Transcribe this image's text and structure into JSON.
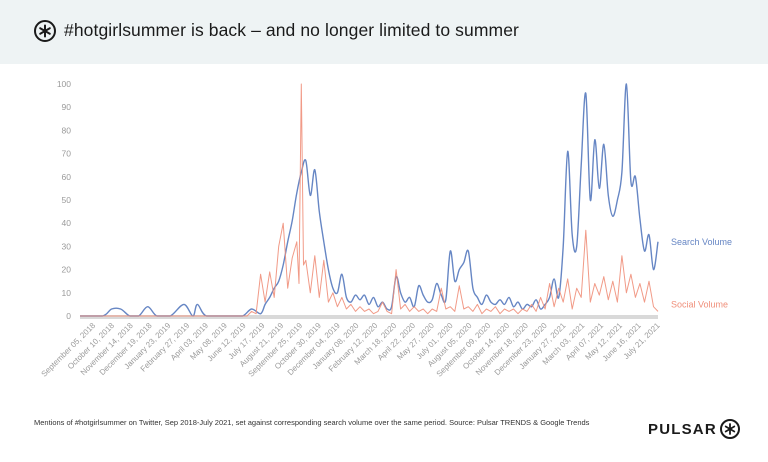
{
  "header": {
    "title": "#hotgirlsummer is back – and no longer limited to summer",
    "logo_icon": "pulsar-asterisk-icon"
  },
  "chart_data": {
    "type": "line",
    "title": "#hotgirlsummer is back – and no longer limited to summer",
    "xlabel": "",
    "ylabel": "",
    "ylim": [
      0,
      100
    ],
    "yticks": [
      0,
      10,
      20,
      30,
      40,
      50,
      60,
      70,
      80,
      90,
      100
    ],
    "grid": false,
    "legend": "inline-right",
    "x_tick_labels": [
      "September 05, 2018",
      "October 10, 2018",
      "November 14, 2018",
      "December 19, 2018",
      "January 23, 2019",
      "February 27, 2019",
      "April 03, 2019",
      "May 08, 2019",
      "June 12, 2019",
      "July 17, 2019",
      "August 21, 2019",
      "September 25, 2019",
      "October 30, 2019",
      "December 04, 2019",
      "January 08, 2020",
      "February 12, 2020",
      "March 18, 2020",
      "April 22, 2020",
      "May 27, 2020",
      "July 01, 2020",
      "August 05, 2020",
      "September 09, 2020",
      "October 14, 2020",
      "November 18, 2020",
      "December 23, 2020",
      "January 27, 2021",
      "March 03, 2021",
      "April 07, 2021",
      "May 12, 2021",
      "June 16, 2021",
      "July 21, 2021"
    ],
    "series": [
      {
        "name": "Search Volume",
        "color": "#6686c4",
        "points": [
          [
            0,
            0
          ],
          [
            5,
            0
          ],
          [
            7,
            3
          ],
          [
            9,
            3
          ],
          [
            11,
            0
          ],
          [
            13,
            0
          ],
          [
            15,
            4
          ],
          [
            17,
            0
          ],
          [
            20,
            0
          ],
          [
            23,
            5
          ],
          [
            25,
            0
          ],
          [
            26,
            5
          ],
          [
            28,
            0
          ],
          [
            33,
            0
          ],
          [
            36,
            0
          ],
          [
            38,
            3
          ],
          [
            40,
            1
          ],
          [
            41,
            5
          ],
          [
            42,
            8
          ],
          [
            43,
            12
          ],
          [
            44,
            15
          ],
          [
            45,
            22
          ],
          [
            46,
            32
          ],
          [
            47,
            41
          ],
          [
            48,
            53
          ],
          [
            49,
            62
          ],
          [
            50,
            67
          ],
          [
            51,
            52
          ],
          [
            52,
            63
          ],
          [
            53,
            45
          ],
          [
            54,
            32
          ],
          [
            55,
            20
          ],
          [
            56,
            12
          ],
          [
            57,
            10
          ],
          [
            58,
            18
          ],
          [
            59,
            8
          ],
          [
            60,
            6
          ],
          [
            61,
            9
          ],
          [
            62,
            7
          ],
          [
            63,
            9
          ],
          [
            64,
            5
          ],
          [
            65,
            8
          ],
          [
            66,
            4
          ],
          [
            67,
            6
          ],
          [
            68,
            3
          ],
          [
            69,
            4
          ],
          [
            70,
            17
          ],
          [
            71,
            10
          ],
          [
            72,
            6
          ],
          [
            73,
            8
          ],
          [
            74,
            4
          ],
          [
            75,
            13
          ],
          [
            76,
            9
          ],
          [
            77,
            6
          ],
          [
            78,
            7
          ],
          [
            79,
            14
          ],
          [
            80,
            9
          ],
          [
            81,
            7
          ],
          [
            82,
            28
          ],
          [
            83,
            15
          ],
          [
            84,
            20
          ],
          [
            85,
            23
          ],
          [
            86,
            28
          ],
          [
            87,
            12
          ],
          [
            88,
            8
          ],
          [
            89,
            5
          ],
          [
            90,
            9
          ],
          [
            91,
            6
          ],
          [
            92,
            5
          ],
          [
            93,
            7
          ],
          [
            94,
            5
          ],
          [
            95,
            8
          ],
          [
            96,
            4
          ],
          [
            97,
            6
          ],
          [
            98,
            3
          ],
          [
            99,
            5
          ],
          [
            100,
            4
          ],
          [
            101,
            7
          ],
          [
            102,
            3
          ],
          [
            103,
            5
          ],
          [
            104,
            8
          ],
          [
            105,
            16
          ],
          [
            106,
            8
          ],
          [
            107,
            30
          ],
          [
            108,
            71
          ],
          [
            109,
            35
          ],
          [
            110,
            30
          ],
          [
            111,
            65
          ],
          [
            112,
            96
          ],
          [
            113,
            50
          ],
          [
            114,
            76
          ],
          [
            115,
            55
          ],
          [
            116,
            74
          ],
          [
            117,
            52
          ],
          [
            118,
            43
          ],
          [
            119,
            50
          ],
          [
            120,
            62
          ],
          [
            121,
            100
          ],
          [
            122,
            58
          ],
          [
            123,
            60
          ],
          [
            124,
            42
          ],
          [
            125,
            28
          ],
          [
            126,
            35
          ],
          [
            127,
            20
          ],
          [
            128,
            32
          ]
        ]
      },
      {
        "name": "Social Volume",
        "color": "#f08f7a",
        "points": [
          [
            0,
            0
          ],
          [
            37,
            0
          ],
          [
            38,
            2
          ],
          [
            39,
            1
          ],
          [
            40,
            18
          ],
          [
            41,
            6
          ],
          [
            42,
            19
          ],
          [
            43,
            8
          ],
          [
            44,
            30
          ],
          [
            45,
            40
          ],
          [
            46,
            12
          ],
          [
            47,
            25
          ],
          [
            48,
            32
          ],
          [
            48.5,
            14
          ],
          [
            49,
            100
          ],
          [
            49.5,
            22
          ],
          [
            50,
            24
          ],
          [
            51,
            10
          ],
          [
            52,
            26
          ],
          [
            53,
            8
          ],
          [
            54,
            24
          ],
          [
            55,
            6
          ],
          [
            56,
            10
          ],
          [
            57,
            4
          ],
          [
            58,
            8
          ],
          [
            59,
            3
          ],
          [
            60,
            5
          ],
          [
            61,
            2
          ],
          [
            62,
            4
          ],
          [
            63,
            2
          ],
          [
            64,
            3
          ],
          [
            65,
            1
          ],
          [
            66,
            2
          ],
          [
            67,
            6
          ],
          [
            68,
            2
          ],
          [
            69,
            1
          ],
          [
            70,
            20
          ],
          [
            71,
            3
          ],
          [
            72,
            5
          ],
          [
            73,
            2
          ],
          [
            74,
            4
          ],
          [
            75,
            2
          ],
          [
            76,
            3
          ],
          [
            77,
            1
          ],
          [
            78,
            3
          ],
          [
            79,
            2
          ],
          [
            80,
            12
          ],
          [
            81,
            3
          ],
          [
            82,
            4
          ],
          [
            83,
            2
          ],
          [
            84,
            13
          ],
          [
            85,
            3
          ],
          [
            86,
            4
          ],
          [
            87,
            2
          ],
          [
            88,
            5
          ],
          [
            89,
            1
          ],
          [
            90,
            3
          ],
          [
            91,
            2
          ],
          [
            92,
            4
          ],
          [
            93,
            1
          ],
          [
            94,
            3
          ],
          [
            95,
            2
          ],
          [
            96,
            3
          ],
          [
            97,
            1
          ],
          [
            98,
            3
          ],
          [
            99,
            2
          ],
          [
            100,
            5
          ],
          [
            101,
            2
          ],
          [
            102,
            8
          ],
          [
            103,
            3
          ],
          [
            104,
            14
          ],
          [
            105,
            4
          ],
          [
            106,
            12
          ],
          [
            107,
            6
          ],
          [
            108,
            16
          ],
          [
            109,
            3
          ],
          [
            110,
            12
          ],
          [
            111,
            8
          ],
          [
            112,
            37
          ],
          [
            113,
            6
          ],
          [
            114,
            14
          ],
          [
            115,
            9
          ],
          [
            116,
            17
          ],
          [
            117,
            7
          ],
          [
            118,
            15
          ],
          [
            119,
            6
          ],
          [
            120,
            26
          ],
          [
            121,
            10
          ],
          [
            122,
            18
          ],
          [
            123,
            8
          ],
          [
            124,
            14
          ],
          [
            125,
            6
          ],
          [
            126,
            15
          ],
          [
            127,
            4
          ],
          [
            128,
            2
          ]
        ]
      }
    ]
  },
  "footer": {
    "caption": "Mentions of #hotgirlsummer on Twitter, Sep 2018-July 2021, set against corresponding search volume over the same period. Source: Pulsar TRENDS & Google Trends",
    "brand": "PULSAR",
    "brand_icon": "pulsar-asterisk-icon"
  }
}
